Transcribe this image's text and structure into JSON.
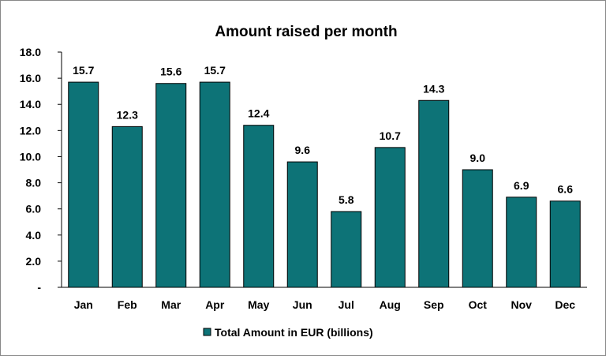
{
  "chart_data": {
    "type": "bar",
    "title": "Amount raised per month",
    "categories": [
      "Jan",
      "Feb",
      "Mar",
      "Apr",
      "May",
      "Jun",
      "Jul",
      "Aug",
      "Sep",
      "Oct",
      "Nov",
      "Dec"
    ],
    "series": [
      {
        "name": "Total Amount in EUR (billions)",
        "values": [
          15.7,
          12.3,
          15.6,
          15.7,
          12.4,
          9.6,
          5.8,
          10.7,
          14.3,
          9.0,
          6.9,
          6.6
        ],
        "labels": [
          "15.7",
          "12.3",
          "15.6",
          "15.7",
          "12.4",
          "9.6",
          "5.8",
          "10.7",
          "14.3",
          "9.0",
          "6.9",
          "6.6"
        ]
      }
    ],
    "ylim": [
      0,
      18
    ],
    "yticks": [
      0,
      2,
      4,
      6,
      8,
      10,
      12,
      14,
      16,
      18
    ],
    "ytick_labels": [
      "-",
      "2.0",
      "4.0",
      "6.0",
      "8.0",
      "10.0",
      "12.0",
      "14.0",
      "16.0",
      "18.0"
    ],
    "xlabel": "",
    "ylabel": "",
    "grid": false,
    "legend_position": "bottom",
    "colors": {
      "bar": "#0D7377",
      "bar_edge": "#000000",
      "axis": "#000000"
    }
  }
}
